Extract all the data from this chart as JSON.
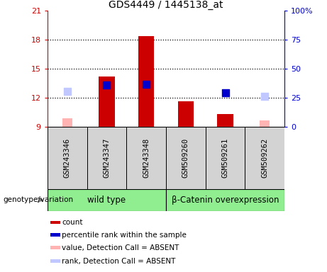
{
  "title": "GDS4449 / 1445138_at",
  "samples": [
    "GSM243346",
    "GSM243347",
    "GSM243348",
    "GSM509260",
    "GSM509261",
    "GSM509262"
  ],
  "groups": [
    {
      "name": "wild type",
      "indices": [
        0,
        1,
        2
      ],
      "color": "#90ee90"
    },
    {
      "name": "β-Catenin overexpression",
      "indices": [
        3,
        4,
        5
      ],
      "color": "#90ee90"
    }
  ],
  "bar_values": [
    null,
    14.2,
    18.35,
    11.65,
    10.3,
    null
  ],
  "bar_values_absent": [
    9.85,
    null,
    null,
    null,
    null,
    9.65
  ],
  "rank_present": [
    null,
    13.3,
    13.4,
    null,
    12.5,
    null
  ],
  "rank_absent": [
    12.65,
    null,
    null,
    null,
    null,
    12.1
  ],
  "ylim_left": [
    9,
    21
  ],
  "ylim_right": [
    0,
    100
  ],
  "yticks_left": [
    9,
    12,
    15,
    18,
    21
  ],
  "yticks_right": [
    0,
    25,
    50,
    75,
    100
  ],
  "ytick_labels_right": [
    "0",
    "25",
    "50",
    "75",
    "100%"
  ],
  "left_color": "#cc0000",
  "right_color": "#0000cc",
  "bg_color": "#d3d3d3",
  "bar_width": 0.4,
  "absent_bar_width": 0.25,
  "rank_marker_size": 45,
  "genotype_label": "genotype/variation",
  "legend_items": [
    {
      "label": "count",
      "color": "#cc0000"
    },
    {
      "label": "percentile rank within the sample",
      "color": "#0000cc"
    },
    {
      "label": "value, Detection Call = ABSENT",
      "color": "#ffb3b3"
    },
    {
      "label": "rank, Detection Call = ABSENT",
      "color": "#c0c8ff"
    }
  ]
}
